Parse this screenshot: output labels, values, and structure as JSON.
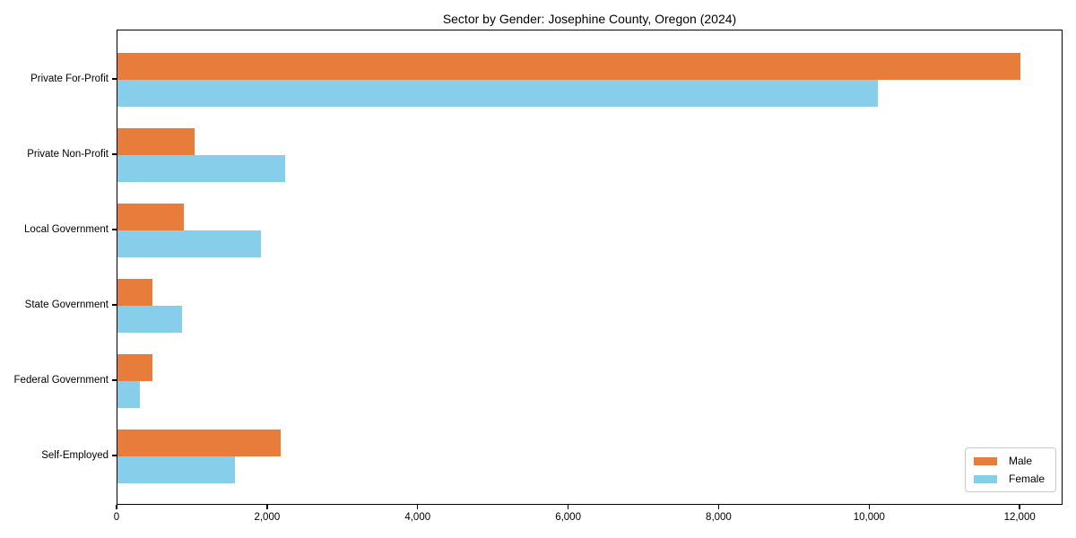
{
  "chart_data": {
    "type": "bar",
    "orientation": "horizontal",
    "title": "Sector by Gender: Josephine County, Oregon (2024)",
    "xlabel": "",
    "ylabel": "",
    "categories": [
      "Private For-Profit",
      "Private Non-Profit",
      "Local Government",
      "State Government",
      "Federal Government",
      "Self-Employed"
    ],
    "series": [
      {
        "name": "Male",
        "color": "#E87D3B",
        "values": [
          12000,
          1030,
          880,
          470,
          460,
          2170
        ]
      },
      {
        "name": "Female",
        "color": "#87CEEB",
        "values": [
          10100,
          2230,
          1910,
          860,
          300,
          1560
        ]
      }
    ],
    "xlim": [
      0,
      12570
    ],
    "xticks": [
      0,
      2000,
      4000,
      6000,
      8000,
      10000,
      12000
    ],
    "xtick_labels": [
      "0",
      "2,000",
      "4,000",
      "6,000",
      "8,000",
      "10,000",
      "12,000"
    ],
    "grid": false,
    "legend_position": "lower right"
  }
}
